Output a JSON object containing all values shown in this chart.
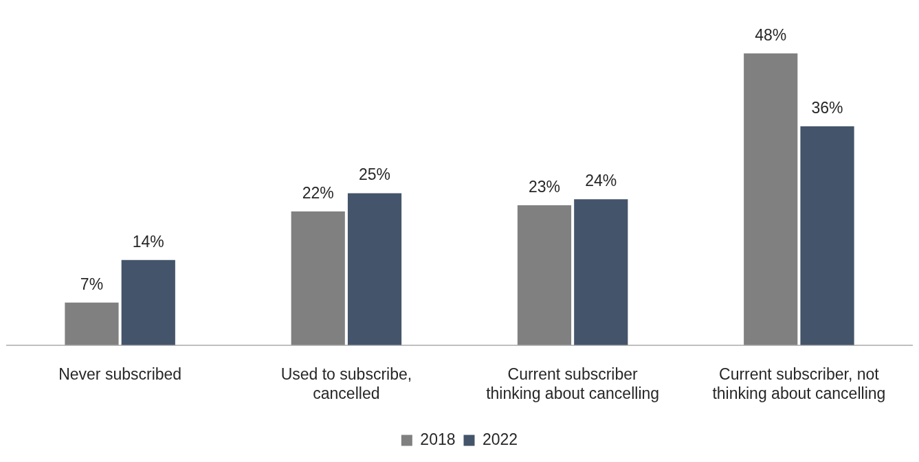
{
  "chart_data": {
    "type": "bar",
    "categories": [
      "Never subscribed",
      "Used to subscribe, cancelled",
      "Current subscriber thinking about cancelling",
      "Current subscriber, not thinking about cancelling"
    ],
    "series": [
      {
        "name": "2018",
        "color": "#808080",
        "values": [
          7,
          22,
          23,
          48
        ],
        "value_labels": [
          "7%",
          "22%",
          "23%",
          "48%"
        ]
      },
      {
        "name": "2022",
        "color": "#44546a",
        "values": [
          14,
          25,
          24,
          36
        ],
        "value_labels": [
          "14%",
          "25%",
          "24%",
          "36%"
        ]
      }
    ],
    "grid": false,
    "legend": "bottom"
  }
}
